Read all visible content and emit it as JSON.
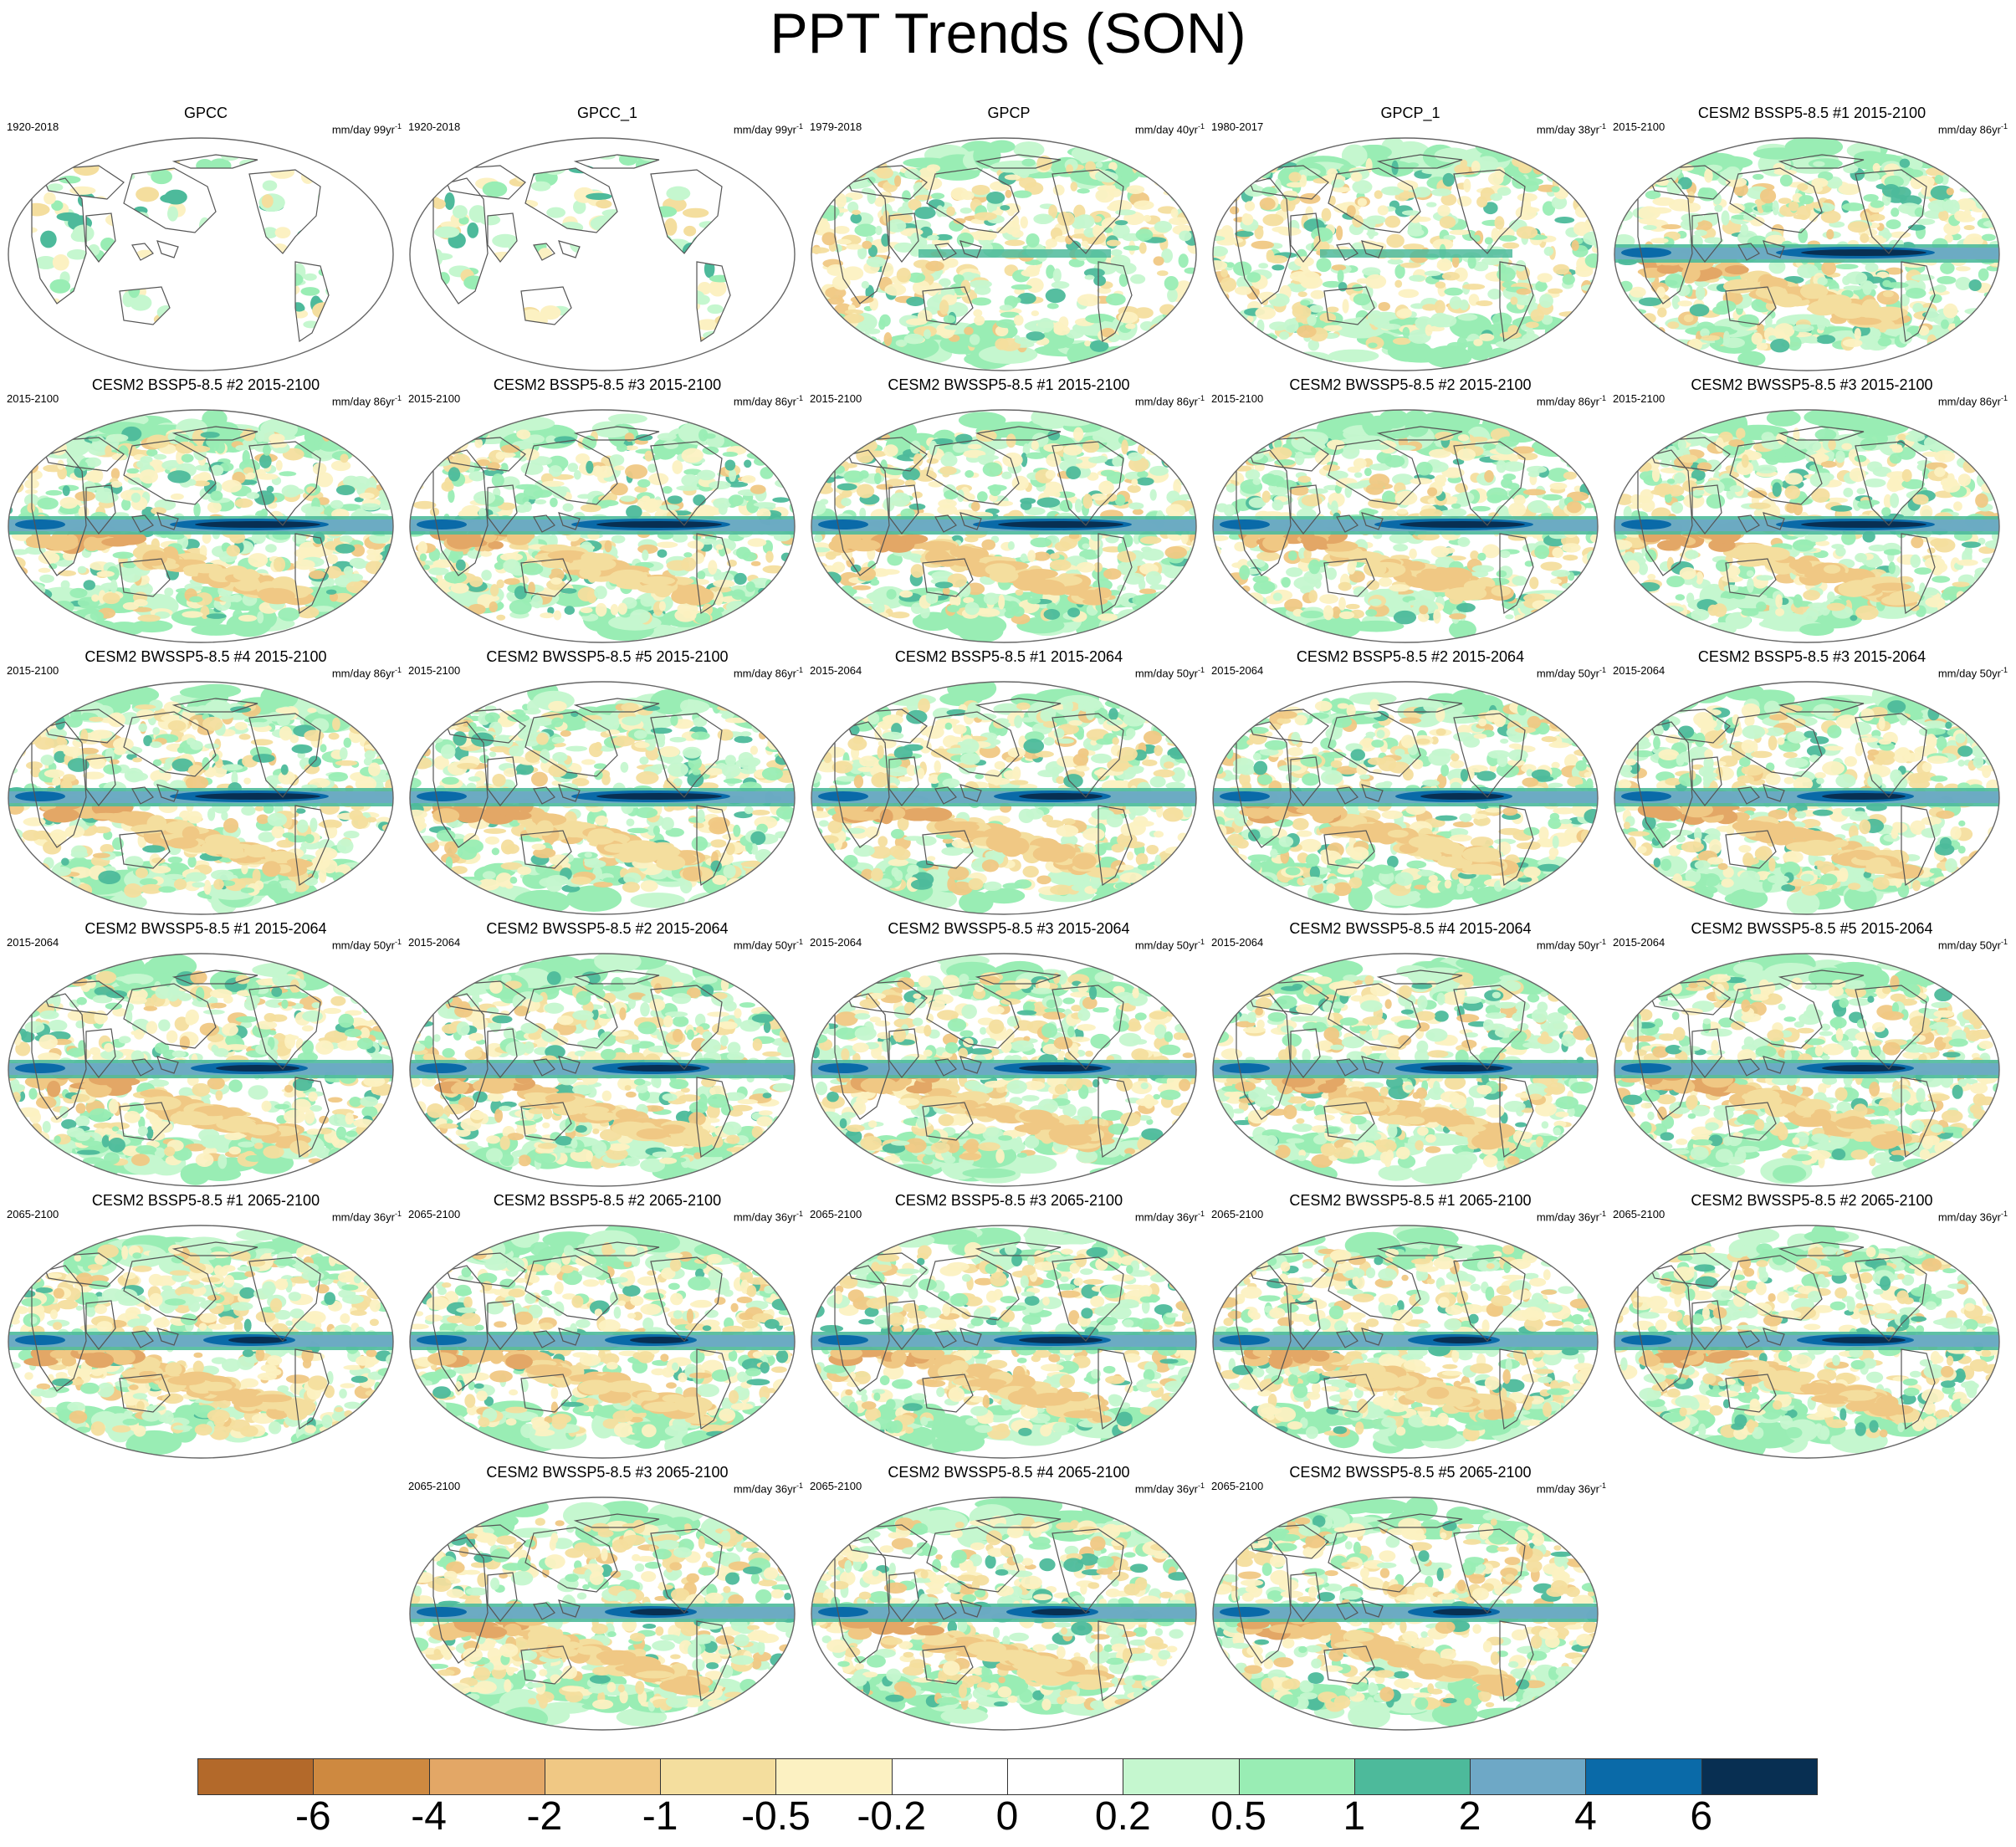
{
  "title": "PPT Trends (SON)",
  "chart_data": {
    "type": "panel-grid-map",
    "variable": "PPT",
    "season": "SON",
    "colorbar": {
      "labels": [
        "-6",
        "-4",
        "-2",
        "-1",
        "-0.5",
        "-0.2",
        "0",
        "0.2",
        "0.5",
        "1",
        "2",
        "4",
        "6"
      ],
      "colors": [
        "#b3692a",
        "#ce8940",
        "#e3a766",
        "#f0c884",
        "#f4de9e",
        "#fcf1c2",
        "#ffffff",
        "#ffffff",
        "#c5f7cf",
        "#99edb4",
        "#4dba9b",
        "#6ea8c6",
        "#0a6aa8",
        "#082f52"
      ]
    },
    "panels": [
      {
        "title": "GPCC",
        "period": "1920-2018",
        "units": "mm/day 99yr",
        "unit_sup": "-1",
        "style": "obs-land"
      },
      {
        "title": "GPCC_1",
        "period": "1920-2018",
        "units": "mm/day 99yr",
        "unit_sup": "-1",
        "style": "obs-land"
      },
      {
        "title": "GPCP",
        "period": "1979-2018",
        "units": "mm/day 40yr",
        "unit_sup": "-1",
        "style": "obs"
      },
      {
        "title": "GPCP_1",
        "period": "1980-2017",
        "units": "mm/day 38yr",
        "unit_sup": "-1",
        "style": "obs"
      },
      {
        "title": "CESM2 BSSP5-8.5 #1 2015-2100",
        "period": "2015-2100",
        "units": "mm/day 86yr",
        "unit_sup": "-1",
        "style": "strong"
      },
      {
        "title": "CESM2 BSSP5-8.5 #2 2015-2100",
        "period": "2015-2100",
        "units": "mm/day 86yr",
        "unit_sup": "-1",
        "style": "strong"
      },
      {
        "title": "CESM2 BSSP5-8.5 #3 2015-2100",
        "period": "2015-2100",
        "units": "mm/day 86yr",
        "unit_sup": "-1",
        "style": "strong"
      },
      {
        "title": "CESM2 BWSSP5-8.5 #1 2015-2100",
        "period": "2015-2100",
        "units": "mm/day 86yr",
        "unit_sup": "-1",
        "style": "strong"
      },
      {
        "title": "CESM2 BWSSP5-8.5 #2 2015-2100",
        "period": "2015-2100",
        "units": "mm/day 86yr",
        "unit_sup": "-1",
        "style": "strong"
      },
      {
        "title": "CESM2 BWSSP5-8.5 #3 2015-2100",
        "period": "2015-2100",
        "units": "mm/day 86yr",
        "unit_sup": "-1",
        "style": "strong"
      },
      {
        "title": "CESM2 BWSSP5-8.5 #4 2015-2100",
        "period": "2015-2100",
        "units": "mm/day 86yr",
        "unit_sup": "-1",
        "style": "strong"
      },
      {
        "title": "CESM2 BWSSP5-8.5 #5 2015-2100",
        "period": "2015-2100",
        "units": "mm/day 86yr",
        "unit_sup": "-1",
        "style": "strong"
      },
      {
        "title": "CESM2 BSSP5-8.5 #1 2015-2064",
        "period": "2015-2064",
        "units": "mm/day 50yr",
        "unit_sup": "-1",
        "style": "medium"
      },
      {
        "title": "CESM2 BSSP5-8.5 #2 2015-2064",
        "period": "2015-2064",
        "units": "mm/day 50yr",
        "unit_sup": "-1",
        "style": "medium"
      },
      {
        "title": "CESM2 BSSP5-8.5 #3 2015-2064",
        "period": "2015-2064",
        "units": "mm/day 50yr",
        "unit_sup": "-1",
        "style": "medium"
      },
      {
        "title": "CESM2 BWSSP5-8.5 #1 2015-2064",
        "period": "2015-2064",
        "units": "mm/day 50yr",
        "unit_sup": "-1",
        "style": "medium"
      },
      {
        "title": "CESM2 BWSSP5-8.5 #2 2015-2064",
        "period": "2015-2064",
        "units": "mm/day 50yr",
        "unit_sup": "-1",
        "style": "medium"
      },
      {
        "title": "CESM2 BWSSP5-8.5 #3 2015-2064",
        "period": "2015-2064",
        "units": "mm/day 50yr",
        "unit_sup": "-1",
        "style": "medium"
      },
      {
        "title": "CESM2 BWSSP5-8.5 #4 2015-2064",
        "period": "2015-2064",
        "units": "mm/day 50yr",
        "unit_sup": "-1",
        "style": "medium"
      },
      {
        "title": "CESM2 BWSSP5-8.5 #5 2015-2064",
        "period": "2015-2064",
        "units": "mm/day 50yr",
        "unit_sup": "-1",
        "style": "medium"
      },
      {
        "title": "CESM2 BSSP5-8.5 #1 2065-2100",
        "period": "2065-2100",
        "units": "mm/day 36yr",
        "unit_sup": "-1",
        "style": "weak"
      },
      {
        "title": "CESM2 BSSP5-8.5 #2 2065-2100",
        "period": "2065-2100",
        "units": "mm/day 36yr",
        "unit_sup": "-1",
        "style": "weak"
      },
      {
        "title": "CESM2 BSSP5-8.5 #3 2065-2100",
        "period": "2065-2100",
        "units": "mm/day 36yr",
        "unit_sup": "-1",
        "style": "medium"
      },
      {
        "title": "CESM2 BWSSP5-8.5 #1 2065-2100",
        "period": "2065-2100",
        "units": "mm/day 36yr",
        "unit_sup": "-1",
        "style": "weak"
      },
      {
        "title": "CESM2 BWSSP5-8.5 #2 2065-2100",
        "period": "2065-2100",
        "units": "mm/day 36yr",
        "unit_sup": "-1",
        "style": "medium"
      },
      {
        "title": "CESM2 BWSSP5-8.5 #3 2065-2100",
        "period": "2065-2100",
        "units": "mm/day 36yr",
        "unit_sup": "-1",
        "style": "weak"
      },
      {
        "title": "CESM2 BWSSP5-8.5 #4 2065-2100",
        "period": "2065-2100",
        "units": "mm/day 36yr",
        "unit_sup": "-1",
        "style": "weak"
      },
      {
        "title": "CESM2 BWSSP5-8.5 #5 2065-2100",
        "period": "2065-2100",
        "units": "mm/day 36yr",
        "unit_sup": "-1",
        "style": "weak"
      }
    ]
  }
}
